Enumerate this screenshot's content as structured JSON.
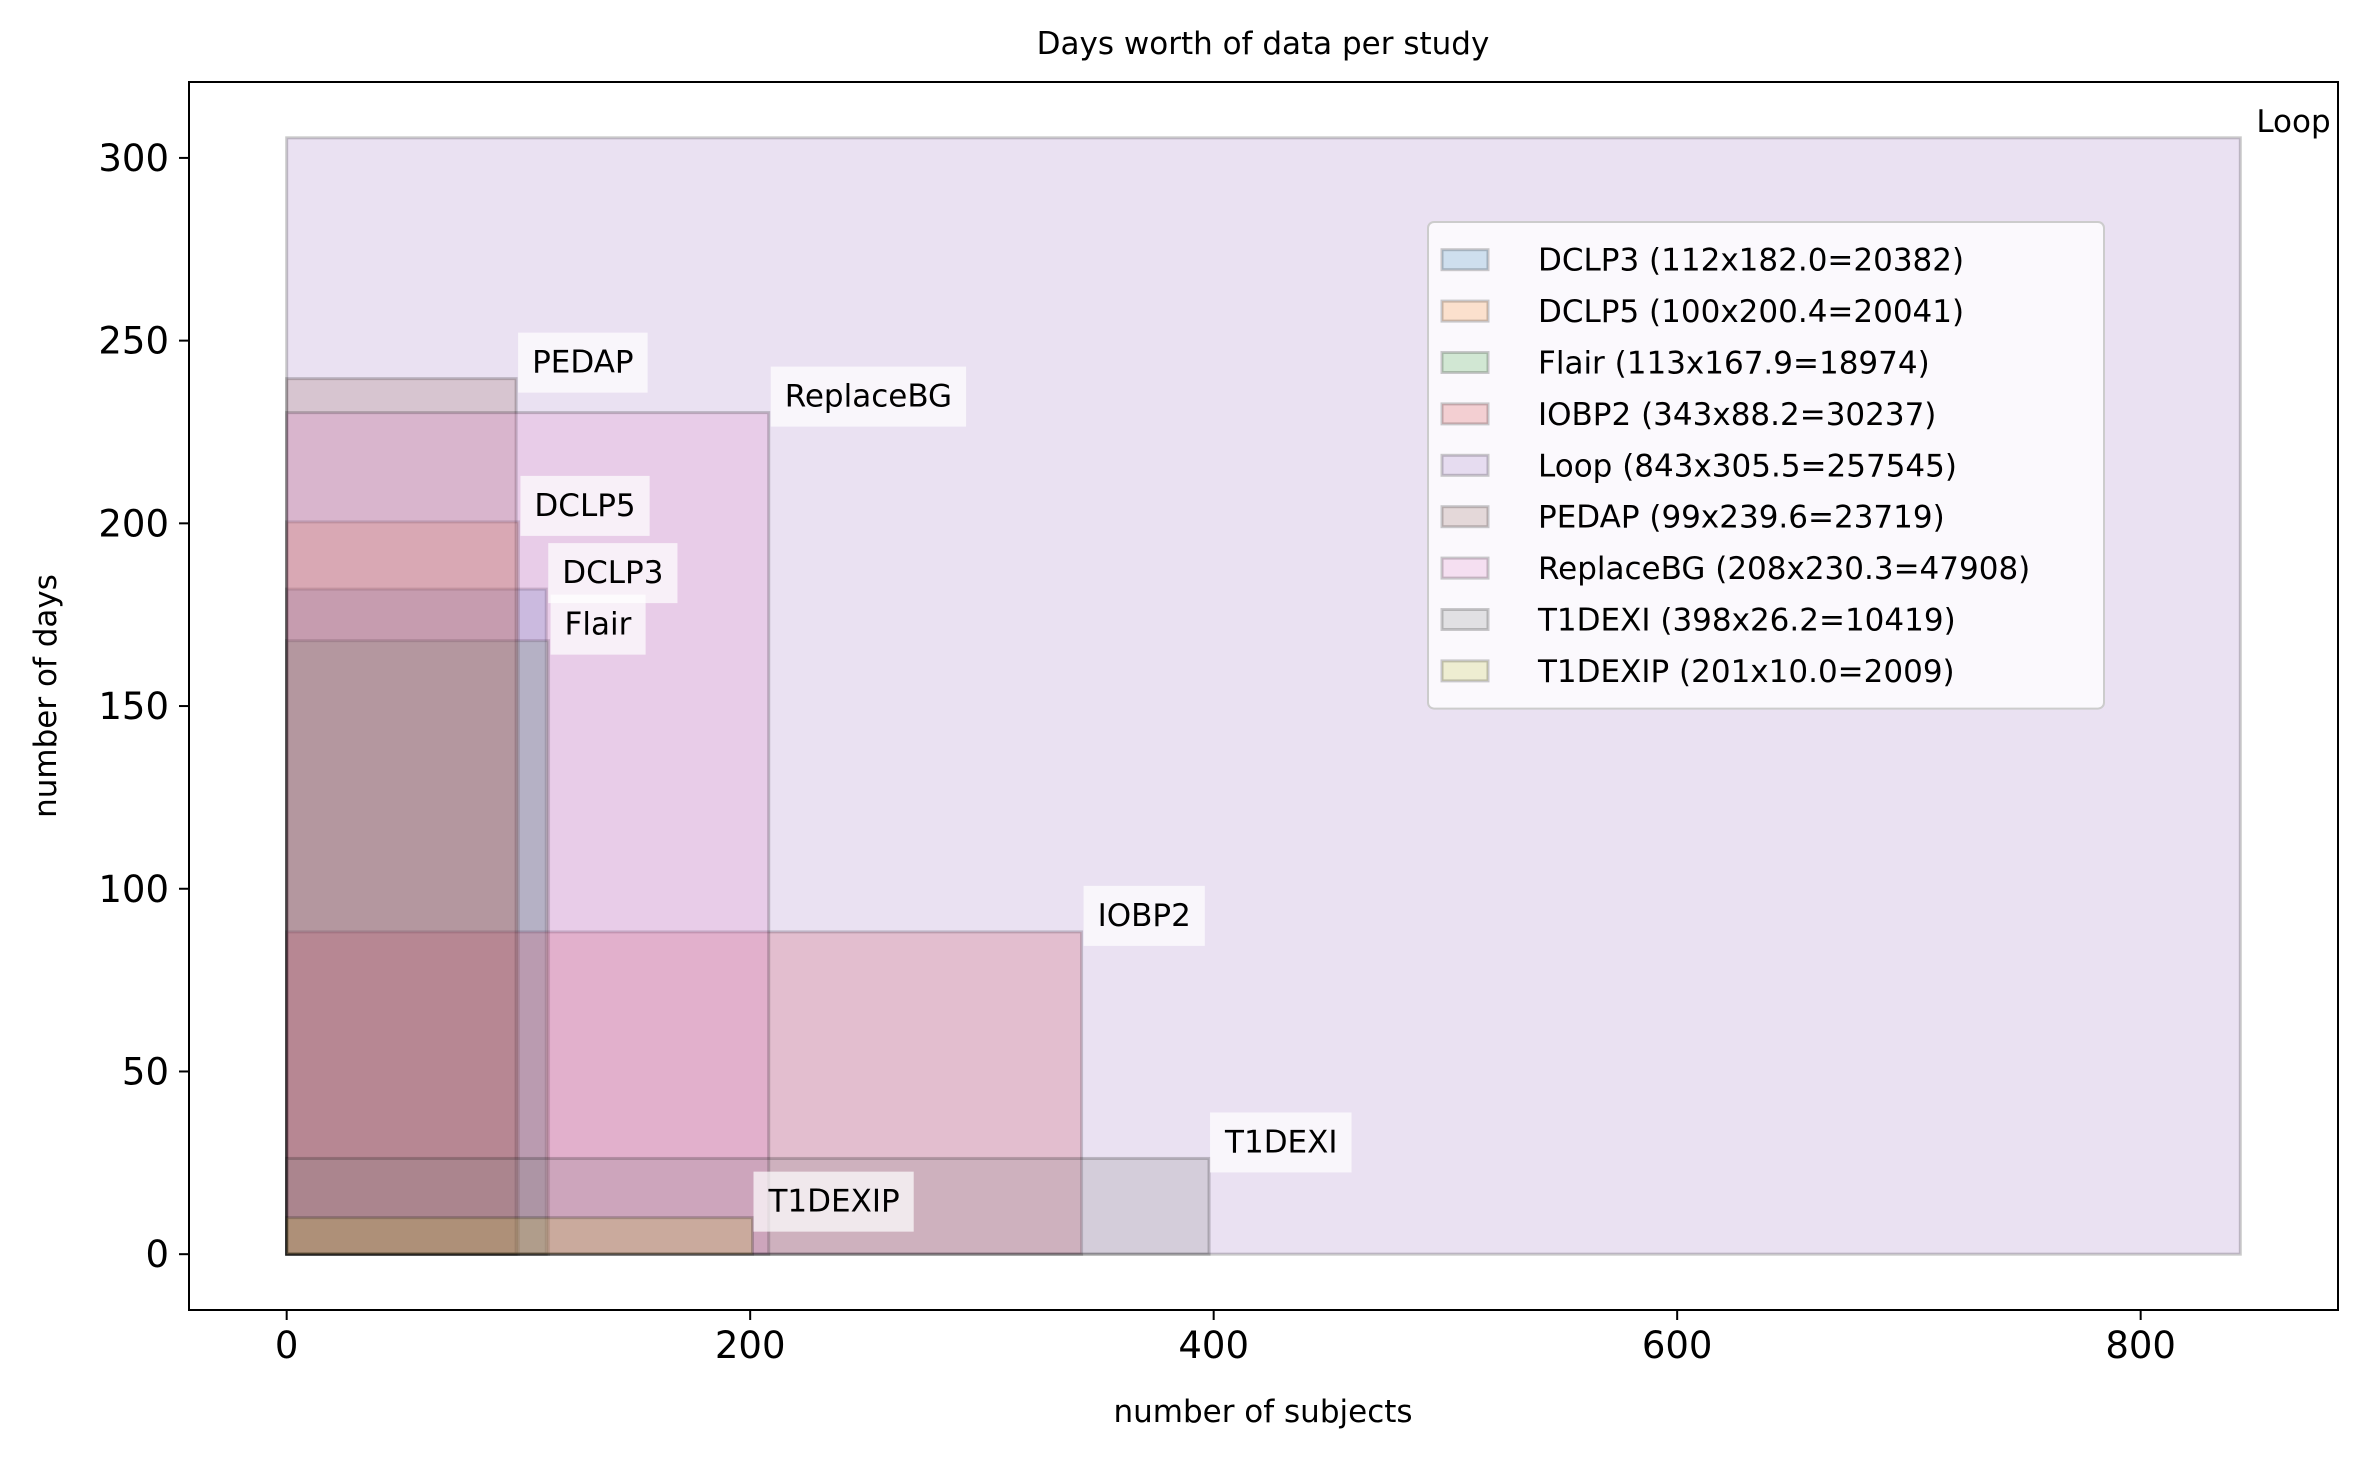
{
  "chart_data": {
    "type": "rectangle-area",
    "title": "Days worth of data per study",
    "xlabel": "number of subjects",
    "ylabel": "number of days",
    "xlim": [
      -42.15,
      885.15
    ],
    "ylim": [
      -15.275,
      320.775
    ],
    "xticks": [
      0,
      200,
      400,
      600,
      800
    ],
    "yticks": [
      0,
      50,
      100,
      150,
      200,
      250,
      300
    ],
    "grid": false,
    "legend_position": "upper right",
    "series": [
      {
        "name": "DCLP3",
        "subjects": 112,
        "days": 182.0,
        "total": 20382,
        "legend": "DCLP3 (112x182.0=20382)",
        "color": "#1f77b4"
      },
      {
        "name": "DCLP5",
        "subjects": 100,
        "days": 200.4,
        "total": 20041,
        "legend": "DCLP5 (100x200.4=20041)",
        "color": "#ff7f0e"
      },
      {
        "name": "Flair",
        "subjects": 113,
        "days": 167.9,
        "total": 18974,
        "legend": "Flair (113x167.9=18974)",
        "color": "#2ca02c"
      },
      {
        "name": "IOBP2",
        "subjects": 343,
        "days": 88.2,
        "total": 30237,
        "legend": "IOBP2 (343x88.2=30237)",
        "color": "#d62728"
      },
      {
        "name": "Loop",
        "subjects": 843,
        "days": 305.5,
        "total": 257545,
        "legend": "Loop (843x305.5=257545)",
        "color": "#9467bd"
      },
      {
        "name": "PEDAP",
        "subjects": 99,
        "days": 239.6,
        "total": 23719,
        "legend": "PEDAP (99x239.6=23719)",
        "color": "#8c564b"
      },
      {
        "name": "ReplaceBG",
        "subjects": 208,
        "days": 230.3,
        "total": 47908,
        "legend": "ReplaceBG (208x230.3=47908)",
        "color": "#e377c2"
      },
      {
        "name": "T1DEXI",
        "subjects": 398,
        "days": 26.2,
        "total": 10419,
        "legend": "T1DEXI (398x26.2=10419)",
        "color": "#7f7f7f"
      },
      {
        "name": "T1DEXIP",
        "subjects": 201,
        "days": 10.0,
        "total": 2009,
        "legend": "T1DEXIP (201x10.0=2009)",
        "color": "#bcbd22"
      }
    ]
  }
}
